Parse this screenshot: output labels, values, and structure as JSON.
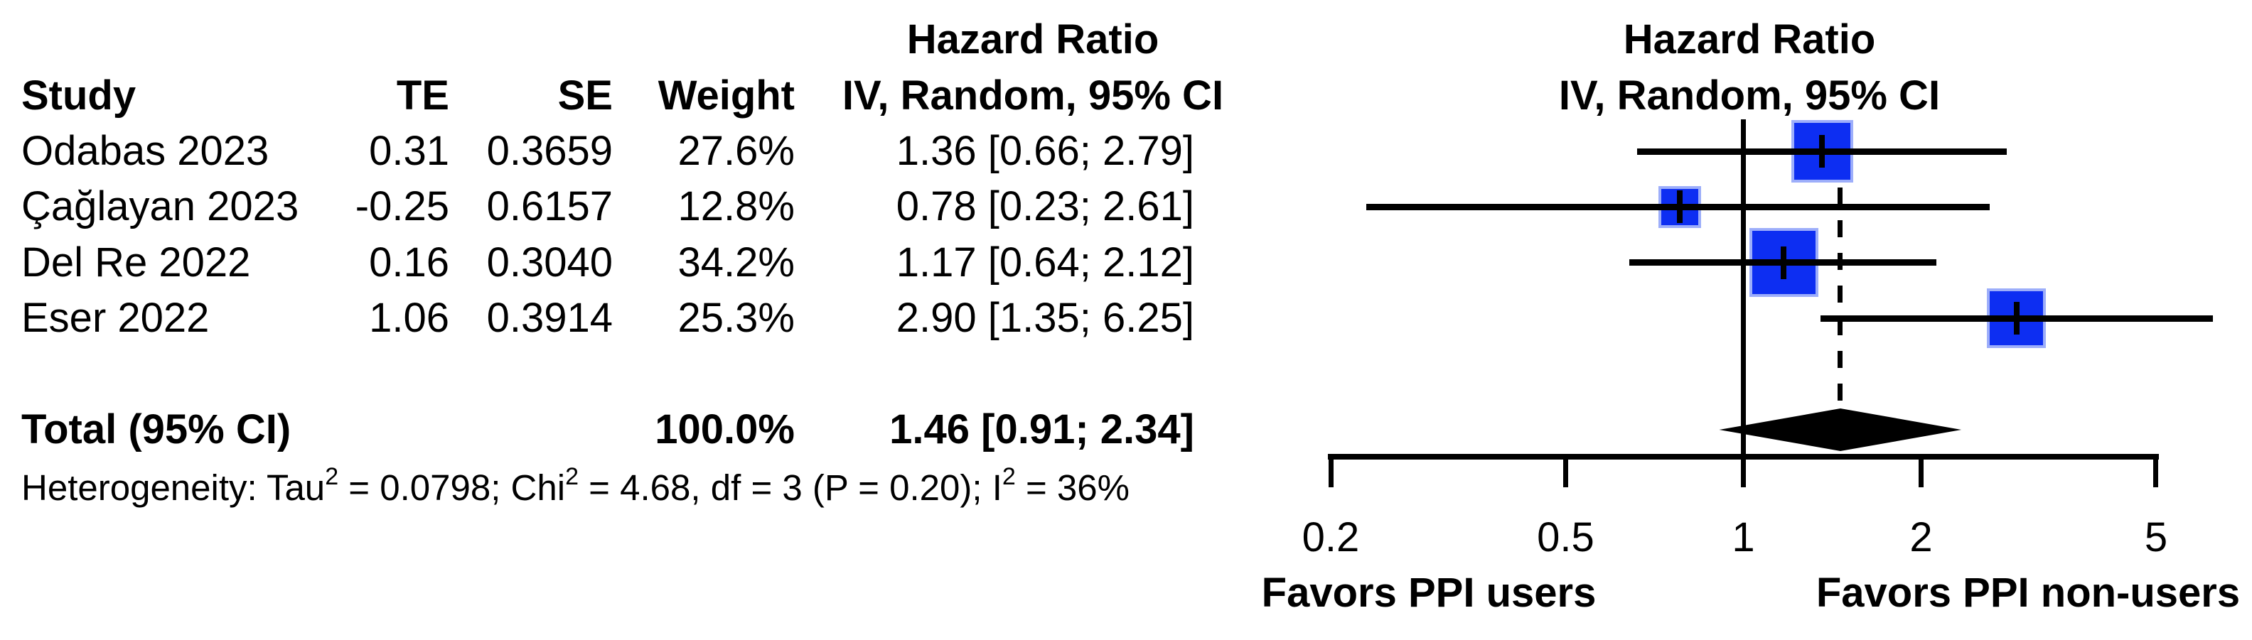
{
  "table": {
    "header": {
      "hazard_ratio_line1": "Hazard Ratio",
      "study": "Study",
      "te": "TE",
      "se": "SE",
      "weight": "Weight",
      "ci": "IV, Random, 95% CI"
    },
    "rows": [
      {
        "study": "Odabas 2023",
        "te": "0.31",
        "se": "0.3659",
        "weight": "27.6%",
        "ci": "1.36 [0.66; 2.79]"
      },
      {
        "study": "Çağlayan 2023",
        "te": "-0.25",
        "se": "0.6157",
        "weight": "12.8%",
        "ci": "0.78 [0.23; 2.61]"
      },
      {
        "study": "Del Re 2022",
        "te": "0.16",
        "se": "0.3040",
        "weight": "34.2%",
        "ci": "1.17 [0.64; 2.12]"
      },
      {
        "study": "Eser 2022",
        "te": "1.06",
        "se": "0.3914",
        "weight": "25.3%",
        "ci": "2.90 [1.35; 6.25]"
      }
    ],
    "total": {
      "label": "Total (95% CI)",
      "weight": "100.0%",
      "ci": "1.46 [0.91; 2.34]"
    },
    "heterogeneity": {
      "prefix": "Heterogeneity: Tau",
      "sup1": "2",
      "mid1": " = 0.0798; Chi",
      "sup2": "2",
      "mid2": " = 4.68, df = 3 (P = 0.20); I",
      "sup3": "2",
      "suffix": " = 36%"
    }
  },
  "plot": {
    "title_line1": "Hazard Ratio",
    "title_line2": "IV, Random, 95% CI",
    "favors_left": "Favors PPI users",
    "favors_right": "Favors PPI non-users"
  },
  "colors": {
    "square": "#0d2ef2",
    "square_border": "#9daefa",
    "line": "#000000"
  },
  "chart_data": {
    "type": "forest",
    "effect_measure": "Hazard Ratio",
    "model": "IV, Random, 95% CI",
    "xscale": "log",
    "ticks": [
      0.2,
      0.5,
      1,
      2,
      5
    ],
    "xlim": [
      0.2,
      6.25
    ],
    "reference_line": 1,
    "pooled_line": 1.46,
    "studies": [
      {
        "study": "Odabas 2023",
        "TE": 0.31,
        "SE": 0.3659,
        "weight_pct": 27.6,
        "hr": 1.36,
        "ci_low": 0.66,
        "ci_high": 2.79
      },
      {
        "study": "Çağlayan 2023",
        "TE": -0.25,
        "SE": 0.6157,
        "weight_pct": 12.8,
        "hr": 0.78,
        "ci_low": 0.23,
        "ci_high": 2.61
      },
      {
        "study": "Del Re 2022",
        "TE": 0.16,
        "SE": 0.304,
        "weight_pct": 34.2,
        "hr": 1.17,
        "ci_low": 0.64,
        "ci_high": 2.12
      },
      {
        "study": "Eser 2022",
        "TE": 1.06,
        "SE": 0.3914,
        "weight_pct": 25.3,
        "hr": 2.9,
        "ci_low": 1.35,
        "ci_high": 6.25
      }
    ],
    "total": {
      "label": "Total (95% CI)",
      "weight_pct": 100.0,
      "hr": 1.46,
      "ci_low": 0.91,
      "ci_high": 2.34
    },
    "heterogeneity": {
      "tau2": 0.0798,
      "chi2": 4.68,
      "df": 3,
      "p": 0.2,
      "i2_pct": 36
    },
    "labels": {
      "left": "Favors PPI users",
      "right": "Favors PPI non-users"
    },
    "legend_position": "none",
    "grid": false
  }
}
